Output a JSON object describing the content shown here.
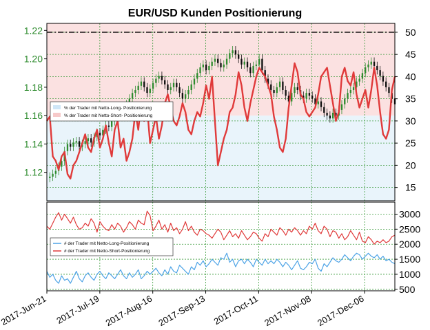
{
  "colors": {
    "long_fill": "#cfe6f7",
    "short_fill": "#f7c9c9",
    "short_line": "#e03a3a",
    "long_line": "#4da3e6",
    "candle_up": "#2e8b2e",
    "candle_down": "#111111",
    "grid": "#3a9a3a",
    "left_ticks": "#2e8b2e"
  },
  "chart_data": {
    "type": "line",
    "title": "EUR/USD Kunden Positionierung",
    "x_tick_labels": [
      "2017-Jun-21",
      "2017-Jul-19",
      "2017-Aug-16",
      "2017-Sep-13",
      "2017-Oct-11",
      "2017-Nov-08",
      "2017-Dec-06"
    ],
    "x_tick_days": [
      0,
      28,
      56,
      84,
      112,
      140,
      168
    ],
    "x_range_days": [
      0,
      184
    ],
    "top_panel": {
      "left_axis_ticks": [
        "1.12",
        "1.14",
        "1.16",
        "1.18",
        "1.20",
        "1.22"
      ],
      "left_axis_range": [
        1.1,
        1.225
      ],
      "right_axis_ticks": [
        "15",
        "20",
        "25",
        "30",
        "35",
        "40",
        "45",
        "50"
      ],
      "right_axis_range": [
        12,
        52
      ],
      "reference_line_value": 50,
      "legend": [
        "% der Trader mit Netto-Long- Positionierung",
        "% der Trader mit Netto-Short- Positionierung"
      ],
      "price_close": [
        1.116,
        1.117,
        1.119,
        1.121,
        1.124,
        1.128,
        1.135,
        1.14,
        1.138,
        1.141,
        1.142,
        1.138,
        1.14,
        1.142,
        1.144,
        1.141,
        1.145,
        1.148,
        1.146,
        1.15,
        1.153,
        1.152,
        1.156,
        1.16,
        1.162,
        1.164,
        1.165,
        1.168,
        1.172,
        1.176,
        1.178,
        1.181,
        1.184,
        1.18,
        1.176,
        1.179,
        1.183,
        1.186,
        1.188,
        1.185,
        1.182,
        1.178,
        1.18,
        1.183,
        1.18,
        1.176,
        1.172,
        1.175,
        1.178,
        1.182,
        1.186,
        1.19,
        1.194,
        1.196,
        1.192,
        1.195,
        1.198,
        1.2,
        1.197,
        1.194,
        1.196,
        1.2,
        1.204,
        1.206,
        1.203,
        1.2,
        1.196,
        1.198,
        1.194,
        1.19,
        1.195,
        1.196,
        1.2,
        1.192,
        1.186,
        1.182,
        1.178,
        1.176,
        1.18,
        1.184,
        1.178,
        1.174,
        1.17,
        1.176,
        1.18,
        1.178,
        1.174,
        1.172,
        1.176,
        1.174,
        1.172,
        1.168,
        1.17,
        1.166,
        1.162,
        1.16,
        1.158,
        1.162,
        1.16,
        1.164,
        1.168,
        1.172,
        1.176,
        1.178,
        1.18,
        1.184,
        1.186,
        1.19,
        1.194,
        1.196,
        1.198,
        1.195,
        1.192,
        1.188,
        1.184,
        1.18,
        1.176,
        1.172,
        1.168
      ],
      "net_short_pct": [
        30,
        31,
        22,
        21,
        19,
        22,
        23,
        18,
        17,
        20,
        21,
        23,
        25,
        27,
        24,
        23,
        26,
        28,
        24,
        26,
        29,
        25,
        22,
        28,
        30,
        24,
        26,
        21,
        23,
        26,
        32,
        28,
        34,
        30,
        33,
        25,
        28,
        31,
        26,
        29,
        34,
        36,
        33,
        30,
        29,
        31,
        34,
        32,
        28,
        27,
        30,
        32,
        31,
        34,
        38,
        35,
        40,
        30,
        20,
        23,
        26,
        28,
        32,
        33,
        36,
        41,
        38,
        33,
        30,
        34,
        37,
        40,
        42,
        41,
        40,
        38,
        36,
        31,
        28,
        24,
        23,
        26,
        33,
        38,
        43,
        41,
        36,
        35,
        32,
        31,
        32,
        33,
        36,
        40,
        41,
        42,
        38,
        34,
        30,
        32,
        40,
        42,
        39,
        38,
        41,
        36,
        33,
        35,
        37,
        33,
        37,
        42,
        38,
        32,
        27,
        26,
        28,
        37,
        40
      ],
      "net_short_pct_x_scale": "sample_index"
    },
    "bottom_panel": {
      "right_axis_ticks": [
        "500",
        "1000",
        "1500",
        "2000",
        "2500",
        "3000"
      ],
      "right_axis_range": [
        450,
        3400
      ],
      "legend": [
        "# der Trader mit Netto-Long-Positionierung",
        "# der Trader mit Netto-Short-Positionierung"
      ],
      "net_short_count": [
        2600,
        2500,
        2700,
        2900,
        3050,
        2800,
        3000,
        2850,
        2700,
        2900,
        2650,
        2500,
        2550,
        2700,
        2600,
        2850,
        2700,
        2400,
        2750,
        2600,
        2500,
        2450,
        2650,
        2500,
        2700,
        2600,
        2400,
        2550,
        2750,
        2650,
        2500,
        2800,
        2700,
        2650,
        3100,
        2950,
        2450,
        2600,
        2800,
        2500,
        2650,
        2400,
        2700,
        2450,
        2550,
        2350,
        2500,
        2750,
        2450,
        2600,
        2400,
        2300,
        2500,
        2450,
        2350,
        2300,
        2200,
        2350,
        2500,
        2400,
        2150,
        2300,
        2450,
        2250,
        2350,
        2200,
        2450,
        2300,
        2150,
        2250,
        2400,
        2350,
        2200,
        2100,
        2350,
        2250,
        2500,
        2400,
        2300,
        2550,
        2450,
        2300,
        2500,
        2400,
        2550,
        2450,
        2300,
        2450,
        2350,
        2600,
        2500,
        2700,
        2450,
        2350,
        2600,
        2500,
        2250,
        2450,
        2400,
        2200,
        2350,
        2150,
        2250,
        2450,
        2300,
        2150,
        2400,
        2100,
        2050,
        2250,
        2150,
        2000,
        2100,
        2050,
        2150,
        2050,
        2100,
        2250,
        2300
      ],
      "net_long_count": [
        1100,
        900,
        1000,
        800,
        700,
        950,
        800,
        850,
        700,
        900,
        1100,
        850,
        750,
        950,
        1050,
        900,
        800,
        1000,
        1100,
        950,
        850,
        1050,
        950,
        850,
        1000,
        1150,
        950,
        850,
        1050,
        900,
        1000,
        1150,
        850,
        950,
        1100,
        1000,
        1100,
        1200,
        1050,
        950,
        1150,
        1000,
        1250,
        1100,
        1050,
        1300,
        1200,
        1100,
        1000,
        1250,
        1150,
        1400,
        1300,
        1450,
        1250,
        1350,
        1500,
        1400,
        1300,
        1550,
        1500,
        1700,
        1400,
        1500,
        1250,
        1450,
        1500,
        1350,
        1500,
        1400,
        1250,
        1500,
        1400,
        1300,
        1500,
        1350,
        1450,
        1350,
        1500,
        1400,
        1250,
        1400,
        1300,
        1150,
        1300,
        1450,
        1200,
        1150,
        1250,
        1400,
        1350,
        1500,
        1200,
        1100,
        1350,
        1250,
        1400,
        1550,
        1450,
        1400,
        1500,
        1650,
        1550,
        1450,
        1600,
        1700,
        1650,
        1500,
        1600,
        1700,
        1600,
        1550,
        1650,
        1500,
        1600,
        1450,
        1500,
        1400,
        1350
      ]
    }
  }
}
